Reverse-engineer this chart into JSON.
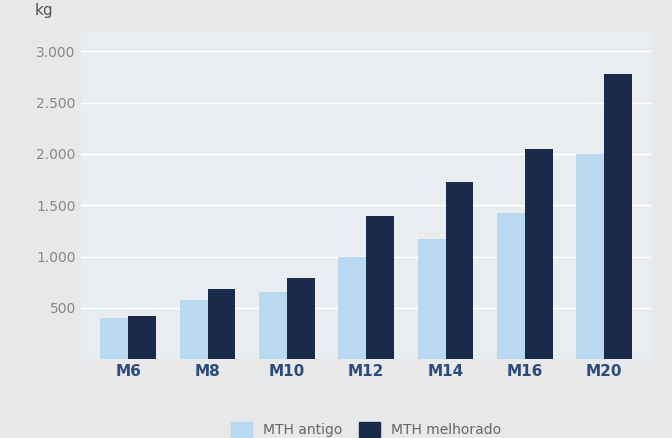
{
  "categories": [
    "M6",
    "M8",
    "M10",
    "M12",
    "M14",
    "M16",
    "M20"
  ],
  "mth_antigo": [
    400,
    575,
    650,
    1000,
    1175,
    1425,
    2000
  ],
  "mth_melhorado": [
    420,
    680,
    790,
    1390,
    1725,
    2050,
    2775
  ],
  "color_antigo": "#b8d9f0",
  "color_melhorado": "#1a2a4a",
  "background_color": "#e8e8e8",
  "plot_background": "#eaedf0",
  "grid_color": "#ffffff",
  "ylabel": "kg",
  "ylim": [
    0,
    3200
  ],
  "yticks": [
    500,
    1000,
    1500,
    2000,
    2500,
    3000
  ],
  "ytick_labels": [
    "500",
    "1.000",
    "1.500",
    "2.000",
    "2.500",
    "3.000"
  ],
  "xlabel_color": "#2c4a7c",
  "tick_label_color": "#888888",
  "legend_antigo": "MTH antigo",
  "legend_melhorado": "MTH melhorado",
  "legend_text_color": "#666666",
  "bar_width": 0.35,
  "fontsize_ticks": 10,
  "fontsize_kg": 11,
  "fontsize_legend": 10,
  "fontsize_xlabel": 11
}
